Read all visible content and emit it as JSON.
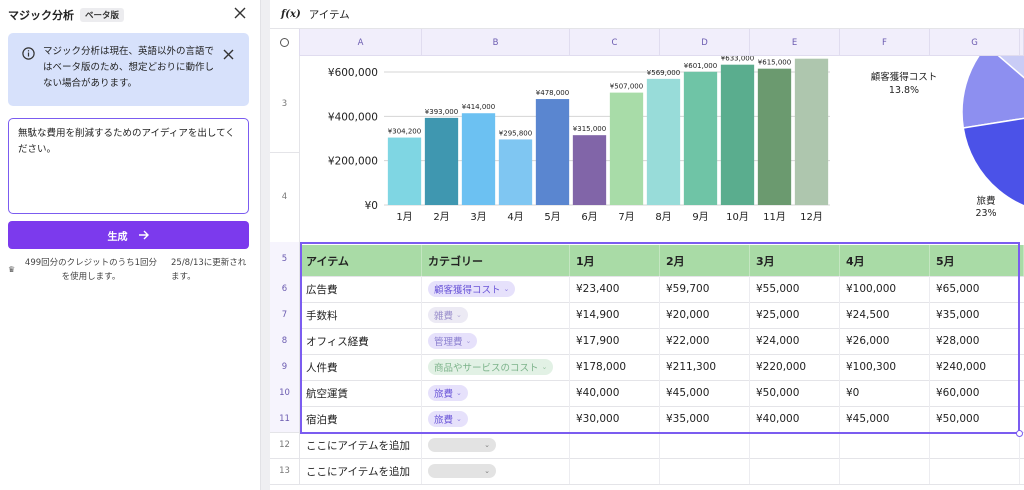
{
  "left_panel": {
    "title": "マジック分析",
    "beta_badge": "ベータ版",
    "notice_text": "マジック分析は現在、英語以外の言語ではベータ版のため、想定どおりに動作しない場合があります。",
    "prompt_text": "無駄な費用を削減するためのアイディアを出してください。",
    "generate_label": "生成",
    "credit_usage": "499回分のクレジットのうち1回分を使用します。",
    "credit_update": "25/8/13に更新されます。",
    "accent_color": "#7c3aed",
    "notice_bg": "#d7e1fb"
  },
  "formula_bar": {
    "fx_label": "f(x)",
    "value": "アイテム"
  },
  "column_headers": [
    "A",
    "B",
    "C",
    "D",
    "E",
    "F",
    "G"
  ],
  "row_numbers": {
    "chart_rows": [
      "3",
      "4"
    ],
    "table_rows": [
      "5",
      "6",
      "7",
      "8",
      "9",
      "10",
      "11",
      "12",
      "13"
    ]
  },
  "table": {
    "headers": [
      "アイテム",
      "カテゴリー",
      "1月",
      "2月",
      "3月",
      "4月",
      "5月"
    ],
    "rows": [
      {
        "item": "広告費",
        "category": "顧客獲得コスト",
        "cat_style": "p-acq",
        "values": [
          "¥23,400",
          "¥59,700",
          "¥55,000",
          "¥100,000",
          "¥65,000"
        ]
      },
      {
        "item": "手数料",
        "category": "雑費",
        "cat_style": "p-misc",
        "values": [
          "¥14,900",
          "¥20,000",
          "¥25,000",
          "¥24,500",
          "¥35,000"
        ]
      },
      {
        "item": "オフィス経費",
        "category": "管理費",
        "cat_style": "p-admin",
        "values": [
          "¥17,900",
          "¥22,000",
          "¥24,000",
          "¥26,000",
          "¥28,000"
        ]
      },
      {
        "item": "人件費",
        "category": "商品やサービスのコスト",
        "cat_style": "p-cogs",
        "values": [
          "¥178,000",
          "¥211,300",
          "¥220,000",
          "¥100,300",
          "¥240,000"
        ]
      },
      {
        "item": "航空運賃",
        "category": "旅費",
        "cat_style": "p-travel",
        "values": [
          "¥40,000",
          "¥45,000",
          "¥50,000",
          "¥0",
          "¥60,000"
        ]
      },
      {
        "item": "宿泊費",
        "category": "旅費",
        "cat_style": "p-travel",
        "values": [
          "¥30,000",
          "¥35,000",
          "¥40,000",
          "¥45,000",
          "¥50,000"
        ]
      }
    ],
    "add_rows": [
      "ここにアイテムを追加",
      "ここにアイテムを追加"
    ]
  },
  "chart_data": [
    {
      "type": "bar",
      "categories": [
        "1月",
        "2月",
        "3月",
        "4月",
        "5月",
        "6月",
        "7月",
        "8月",
        "9月",
        "10月",
        "11月",
        "12月"
      ],
      "values": [
        304200,
        393000,
        414000,
        295800,
        478000,
        315000,
        507000,
        569000,
        601000,
        633000,
        615000,
        660000
      ],
      "data_labels": [
        "¥304,200",
        "¥393,000",
        "¥414,000",
        "¥295,800",
        "¥478,000",
        "¥315,000",
        "¥507,000",
        "¥569,000",
        "¥601,000",
        "¥633,000",
        "¥615,000",
        ""
      ],
      "colors": [
        "#7fd6e3",
        "#3f97b0",
        "#6cc1f2",
        "#7fc6f2",
        "#5a86d0",
        "#8165a8",
        "#a8dca8",
        "#98dcd9",
        "#6fc4a6",
        "#5aad8e",
        "#6b9a6f",
        "#aec6ae"
      ],
      "ylim": [
        0,
        600000
      ],
      "yticks": [
        "¥0",
        "¥200,000",
        "¥400,000",
        "¥600,000"
      ],
      "ytick_values": [
        0,
        200000,
        400000,
        600000
      ],
      "grid": true
    },
    {
      "type": "pie",
      "labels": [
        "顧客獲得コスト",
        "旅費"
      ],
      "values": [
        13.8,
        23
      ],
      "value_labels": [
        "13.8%",
        "23%"
      ],
      "colors": [
        "#8d8ff0",
        "#4b52e8"
      ]
    }
  ]
}
